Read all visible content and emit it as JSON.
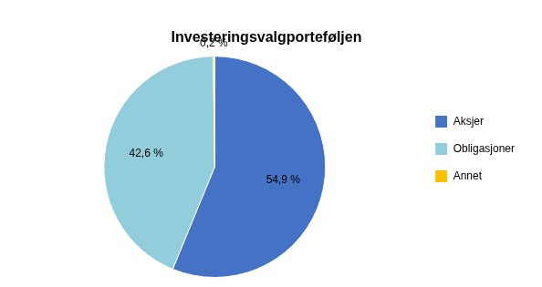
{
  "chart_data": {
    "type": "pie",
    "title": "Investeringsvalgporteføljen",
    "categories": [
      "Aksjer",
      "Obligasjoner",
      "Annet"
    ],
    "values": [
      54.9,
      42.6,
      0.2
    ],
    "value_labels": [
      "54,9 %",
      "42,6 %",
      "0,2 %"
    ],
    "colors": [
      "#4472C4",
      "#92CDDC",
      "#FFC000"
    ],
    "data_labels": true,
    "legend": "right"
  }
}
